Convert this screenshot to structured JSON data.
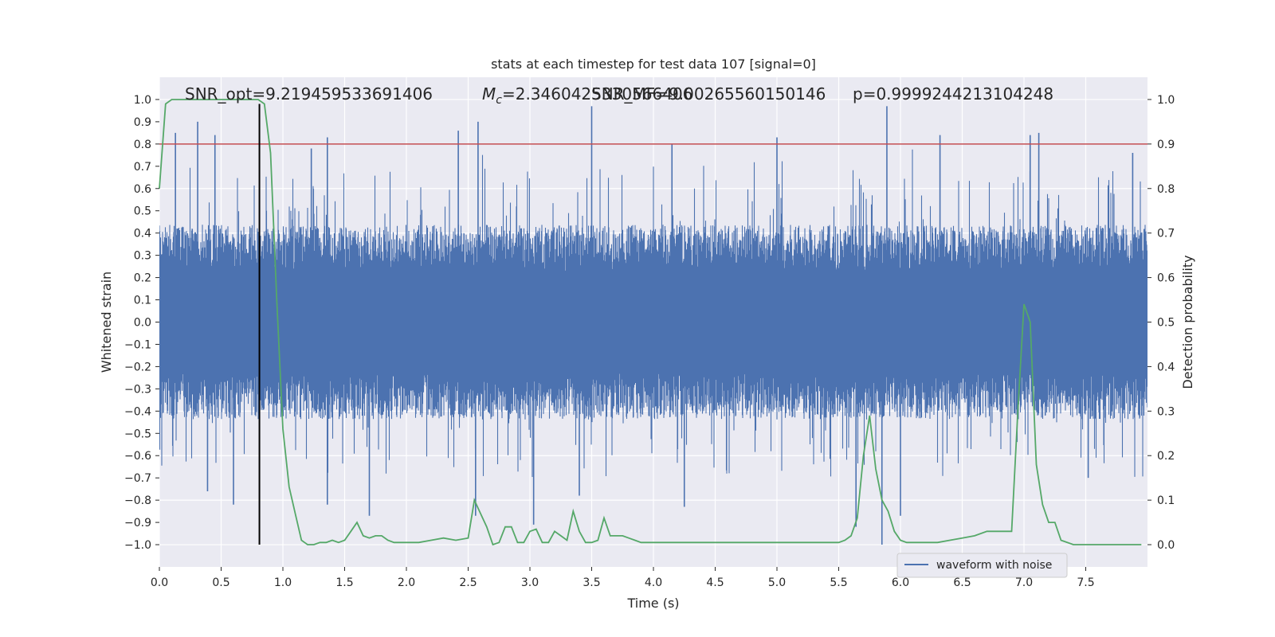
{
  "chart_data": {
    "type": "line",
    "title": "stats at each timestep for test data 107 [signal=0]",
    "xlabel": "Time (s)",
    "ylabel": "Whitened strain",
    "y2label": "Detection probability",
    "xlim": [
      0.0,
      8.0
    ],
    "ylim": [
      -1.1,
      1.1
    ],
    "y2lim": [
      -0.05,
      1.05
    ],
    "xticks": [
      "0.0",
      "0.5",
      "1.0",
      "1.5",
      "2.0",
      "2.5",
      "3.0",
      "3.5",
      "4.0",
      "4.5",
      "5.0",
      "5.5",
      "6.0",
      "6.5",
      "7.0",
      "7.5"
    ],
    "yticks": [
      "1.0",
      "0.9",
      "0.8",
      "0.7",
      "0.6",
      "0.5",
      "0.4",
      "0.3",
      "0.2",
      "0.1",
      "0.0",
      "-0.1",
      "-0.2",
      "-0.3",
      "-0.4",
      "-0.5",
      "-0.6",
      "-0.7",
      "-0.8",
      "-0.9",
      "-1.0"
    ],
    "y2ticks": [
      "1.0",
      "0.9",
      "0.8",
      "0.7",
      "0.6",
      "0.5",
      "0.4",
      "0.3",
      "0.2",
      "0.1",
      "0.0"
    ],
    "grid": true,
    "legend": {
      "placement": "lower-right",
      "entries": [
        "waveform with noise"
      ]
    },
    "colors": {
      "waveform": "#4c72b0",
      "probability": "#55a868",
      "threshold": "#c44e52",
      "marker": "#000000",
      "plot_bg": "#eaeaf2",
      "grid": "#ffffff"
    },
    "annotations": [
      {
        "text": "SNR_opt=9.219459533691406",
        "x": 0.2
      },
      {
        "text": "M_c=2.3460425330566406",
        "x": 2.6
      },
      {
        "text": "SNR_MF=9.00265560150146",
        "x": 3.5
      },
      {
        "text": "p=0.9999244213104248",
        "x": 5.6
      }
    ],
    "threshold_line": {
      "y2": 0.9
    },
    "vertical_marker": {
      "x": 0.81,
      "y_from": -1.0,
      "y_to": 0.98
    },
    "waveform_envelope": {
      "description_free": true,
      "base_amplitude": 0.35,
      "x_range": [
        0.0,
        8.0
      ],
      "spikes": [
        {
          "x": 0.13,
          "y": 0.85
        },
        {
          "x": 0.31,
          "y": 0.9
        },
        {
          "x": 0.45,
          "y": 0.84
        },
        {
          "x": 1.23,
          "y": 0.78
        },
        {
          "x": 1.36,
          "y": 0.83
        },
        {
          "x": 2.42,
          "y": 0.86
        },
        {
          "x": 2.58,
          "y": 0.9
        },
        {
          "x": 3.5,
          "y": 0.97
        },
        {
          "x": 4.15,
          "y": 0.8
        },
        {
          "x": 5.0,
          "y": 0.83
        },
        {
          "x": 5.89,
          "y": 0.97
        },
        {
          "x": 6.32,
          "y": 0.84
        },
        {
          "x": 7.05,
          "y": 0.84
        },
        {
          "x": 7.12,
          "y": 0.85
        },
        {
          "x": 7.88,
          "y": 0.76
        },
        {
          "x": 0.39,
          "y": -0.76
        },
        {
          "x": 0.6,
          "y": -0.82
        },
        {
          "x": 1.36,
          "y": -0.82
        },
        {
          "x": 1.7,
          "y": -0.87
        },
        {
          "x": 2.56,
          "y": -0.87
        },
        {
          "x": 3.03,
          "y": -0.91
        },
        {
          "x": 3.4,
          "y": -0.78
        },
        {
          "x": 4.25,
          "y": -0.83
        },
        {
          "x": 5.64,
          "y": -0.92
        },
        {
          "x": 5.85,
          "y": -1.0
        },
        {
          "x": 6.0,
          "y": -0.87
        },
        {
          "x": 7.52,
          "y": -0.7
        }
      ]
    },
    "series": [
      {
        "name": "waveform with noise",
        "type": "waveform"
      },
      {
        "name": "",
        "axis": "right",
        "x": [
          0.0,
          0.05,
          0.1,
          0.15,
          0.2,
          0.3,
          0.4,
          0.5,
          0.6,
          0.7,
          0.75,
          0.8,
          0.85,
          0.9,
          0.95,
          1.0,
          1.05,
          1.1,
          1.15,
          1.2,
          1.25,
          1.3,
          1.35,
          1.4,
          1.45,
          1.5,
          1.55,
          1.6,
          1.65,
          1.7,
          1.75,
          1.8,
          1.85,
          1.9,
          1.95,
          2.0,
          2.1,
          2.2,
          2.3,
          2.4,
          2.5,
          2.55,
          2.6,
          2.65,
          2.7,
          2.75,
          2.8,
          2.85,
          2.9,
          2.95,
          3.0,
          3.05,
          3.1,
          3.15,
          3.2,
          3.25,
          3.3,
          3.35,
          3.4,
          3.45,
          3.5,
          3.55,
          3.6,
          3.65,
          3.7,
          3.75,
          3.8,
          3.85,
          3.9,
          3.95,
          4.0,
          4.05,
          4.1,
          4.2,
          4.3,
          4.5,
          4.7,
          5.0,
          5.2,
          5.4,
          5.5,
          5.55,
          5.6,
          5.65,
          5.7,
          5.75,
          5.8,
          5.85,
          5.9,
          5.95,
          6.0,
          6.05,
          6.1,
          6.15,
          6.2,
          6.25,
          6.3,
          6.4,
          6.5,
          6.6,
          6.7,
          6.8,
          6.9,
          6.95,
          7.0,
          7.05,
          7.1,
          7.15,
          7.2,
          7.25,
          7.3,
          7.4,
          7.45,
          7.5,
          7.55,
          7.6,
          7.7,
          7.8,
          7.95
        ],
        "values": [
          0.8,
          0.99,
          1.0,
          1.0,
          1.0,
          1.0,
          1.0,
          1.0,
          1.0,
          1.0,
          1.0,
          1.0,
          0.99,
          0.88,
          0.55,
          0.26,
          0.13,
          0.07,
          0.01,
          0.0,
          0.0,
          0.005,
          0.005,
          0.01,
          0.005,
          0.01,
          0.03,
          0.05,
          0.02,
          0.015,
          0.02,
          0.02,
          0.01,
          0.005,
          0.005,
          0.005,
          0.005,
          0.01,
          0.015,
          0.01,
          0.015,
          0.1,
          0.07,
          0.04,
          0.0,
          0.005,
          0.04,
          0.04,
          0.005,
          0.005,
          0.03,
          0.035,
          0.005,
          0.005,
          0.03,
          0.02,
          0.01,
          0.075,
          0.03,
          0.005,
          0.005,
          0.01,
          0.06,
          0.02,
          0.02,
          0.02,
          0.015,
          0.01,
          0.005,
          0.005,
          0.005,
          0.005,
          0.005,
          0.005,
          0.005,
          0.005,
          0.005,
          0.005,
          0.005,
          0.005,
          0.005,
          0.01,
          0.02,
          0.06,
          0.2,
          0.29,
          0.17,
          0.1,
          0.075,
          0.03,
          0.01,
          0.005,
          0.005,
          0.005,
          0.005,
          0.005,
          0.005,
          0.01,
          0.015,
          0.02,
          0.03,
          0.03,
          0.03,
          0.3,
          0.54,
          0.5,
          0.18,
          0.09,
          0.05,
          0.05,
          0.01,
          0.0,
          0.0,
          0.0,
          0.0,
          0.0,
          0.0,
          0.0,
          0.0
        ]
      }
    ]
  }
}
